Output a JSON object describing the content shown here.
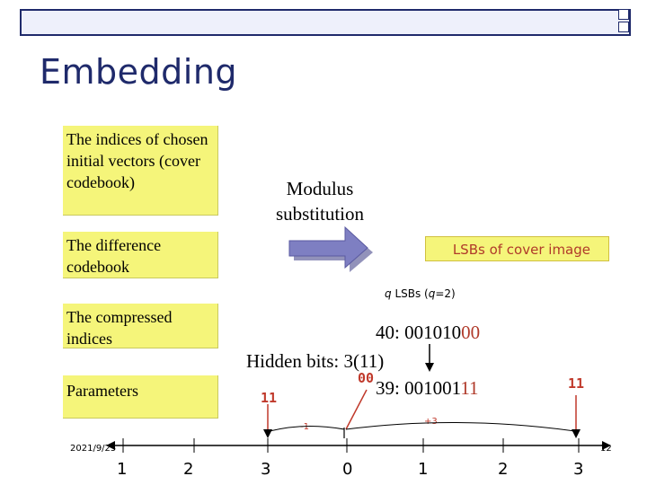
{
  "slide": {
    "title": "Embedding",
    "date": "2021/9/25",
    "page_number": "12"
  },
  "boxes": {
    "initial_vectors": "The indices of chosen initial vectors (cover codebook)",
    "difference_codebook": "The difference codebook",
    "compressed_indices": "The compressed indices",
    "parameters": "Parameters"
  },
  "modulus_label": "Modulus substitution",
  "lsbs_label": "LSBs of cover image",
  "q_lsbs": {
    "q": "q",
    "text_mid": " LSBs (",
    "q2": "q",
    "text_end": "=2)"
  },
  "value_40": {
    "prefix": "40: 001010",
    "suffix": "00"
  },
  "hidden_bits": "Hidden bits: 3(11)",
  "value_39": {
    "prefix": "39: 001001",
    "suffix": "11"
  },
  "red_labels": {
    "bits_00": "00",
    "bits_11_left": "11",
    "bits_11_right": "11",
    "minus_one": "-1",
    "plus_three": "+3"
  },
  "number_line": {
    "ticks": [
      "1",
      "2",
      "3",
      "0",
      "1",
      "2",
      "3"
    ]
  },
  "colors": {
    "box_fill": "#f5f57a",
    "title_color": "#1f2a6b",
    "arrow_fill": "#7e7fc2",
    "accent_red": "#b03a2a"
  }
}
